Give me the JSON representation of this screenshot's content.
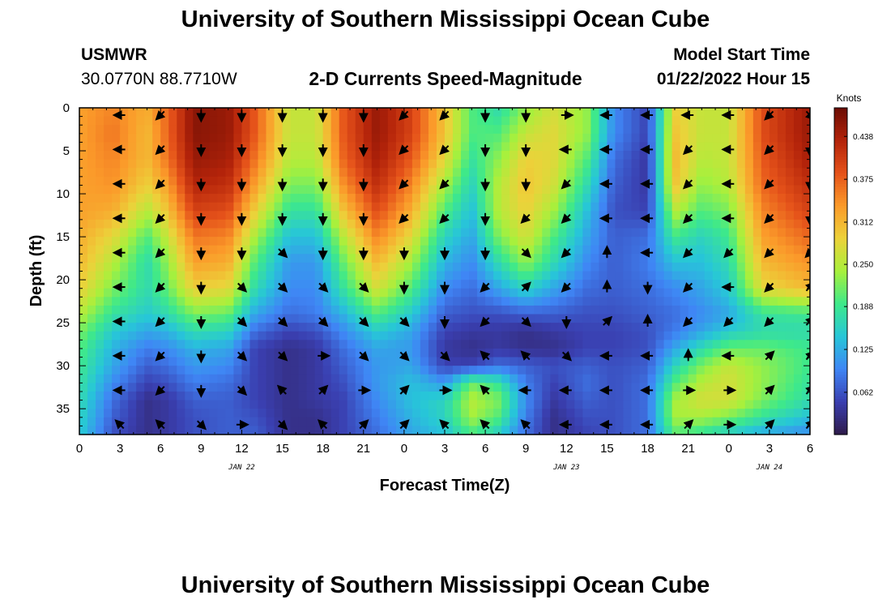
{
  "header": {
    "title": "University of Southern Mississippi Ocean Cube",
    "station": "USMWR",
    "coordinates": "30.0770N  88.7710W",
    "chart_title": "2-D Currents Speed-Magnitude",
    "model_label": "Model Start Time",
    "model_time": "01/22/2022 Hour 15"
  },
  "footer": {
    "title": "University of Southern Mississippi Ocean Cube"
  },
  "colors": {
    "palette": [
      "#2e1a4a",
      "#3a3fb0",
      "#3f86f5",
      "#27c6d8",
      "#3ee98a",
      "#a8f03c",
      "#ecd23a",
      "#fb9a2a",
      "#e5521a",
      "#b3230a",
      "#6b0d04"
    ]
  },
  "chart_data": {
    "type": "heatmap",
    "xlabel": "Forecast Time(Z)",
    "ylabel": "Depth (ft)",
    "x_ticks": [
      "0",
      "3",
      "6",
      "9",
      "12",
      "15",
      "18",
      "21",
      "0",
      "3",
      "6",
      "9",
      "12",
      "15",
      "18",
      "21",
      "0",
      "3",
      "6"
    ],
    "date_labels": [
      "JAN 22",
      "JAN 23",
      "JAN 24"
    ],
    "y_ticks": [
      "0",
      "5",
      "10",
      "15",
      "20",
      "25",
      "30",
      "35"
    ],
    "xlim_hours": [
      0,
      54
    ],
    "ylim_ft": [
      0,
      38
    ],
    "colorbar": {
      "label": "Knots",
      "ticks": [
        "0.438",
        "0.375",
        "0.312",
        "0.250",
        "0.188",
        "0.125",
        "0.062"
      ],
      "range": [
        0,
        0.48
      ]
    },
    "hours": [
      0,
      2.5,
      5,
      6.5,
      8.5,
      11,
      13,
      15.5,
      17.5,
      19.5,
      22,
      24.5,
      27,
      29,
      31,
      33,
      35,
      37.5,
      39.5,
      42,
      44,
      46,
      48,
      50.5,
      54
    ],
    "depths": [
      0,
      3,
      6,
      9,
      12,
      15,
      18,
      21,
      24,
      26,
      28,
      30,
      32,
      34,
      36,
      38
    ],
    "speed_knots": [
      [
        0.33,
        0.35,
        0.32,
        0.37,
        0.46,
        0.45,
        0.38,
        0.26,
        0.26,
        0.38,
        0.45,
        0.4,
        0.3,
        0.2,
        0.17,
        0.23,
        0.27,
        0.23,
        0.1,
        0.05,
        0.29,
        0.26,
        0.26,
        0.39,
        0.45
      ],
      [
        0.33,
        0.36,
        0.31,
        0.37,
        0.46,
        0.45,
        0.38,
        0.26,
        0.26,
        0.38,
        0.45,
        0.4,
        0.3,
        0.2,
        0.2,
        0.26,
        0.28,
        0.23,
        0.1,
        0.05,
        0.3,
        0.26,
        0.26,
        0.39,
        0.45
      ],
      [
        0.33,
        0.35,
        0.31,
        0.36,
        0.45,
        0.44,
        0.36,
        0.25,
        0.25,
        0.37,
        0.44,
        0.38,
        0.28,
        0.18,
        0.23,
        0.29,
        0.28,
        0.2,
        0.08,
        0.04,
        0.31,
        0.25,
        0.26,
        0.38,
        0.44
      ],
      [
        0.33,
        0.34,
        0.29,
        0.33,
        0.43,
        0.42,
        0.33,
        0.22,
        0.22,
        0.34,
        0.42,
        0.35,
        0.24,
        0.16,
        0.25,
        0.3,
        0.27,
        0.17,
        0.07,
        0.04,
        0.3,
        0.23,
        0.25,
        0.37,
        0.42
      ],
      [
        0.33,
        0.32,
        0.25,
        0.3,
        0.4,
        0.39,
        0.29,
        0.18,
        0.18,
        0.3,
        0.39,
        0.32,
        0.2,
        0.14,
        0.25,
        0.29,
        0.24,
        0.14,
        0.06,
        0.05,
        0.25,
        0.2,
        0.22,
        0.35,
        0.4
      ],
      [
        0.32,
        0.28,
        0.2,
        0.26,
        0.36,
        0.35,
        0.24,
        0.14,
        0.14,
        0.25,
        0.35,
        0.28,
        0.16,
        0.12,
        0.22,
        0.27,
        0.2,
        0.12,
        0.07,
        0.08,
        0.19,
        0.16,
        0.19,
        0.33,
        0.37
      ],
      [
        0.31,
        0.25,
        0.17,
        0.23,
        0.33,
        0.32,
        0.2,
        0.11,
        0.11,
        0.21,
        0.31,
        0.24,
        0.13,
        0.1,
        0.17,
        0.23,
        0.17,
        0.1,
        0.07,
        0.09,
        0.14,
        0.14,
        0.17,
        0.31,
        0.34
      ],
      [
        0.29,
        0.22,
        0.17,
        0.21,
        0.29,
        0.28,
        0.17,
        0.1,
        0.1,
        0.18,
        0.27,
        0.2,
        0.1,
        0.08,
        0.12,
        0.16,
        0.12,
        0.08,
        0.07,
        0.08,
        0.1,
        0.12,
        0.15,
        0.28,
        0.31
      ],
      [
        0.25,
        0.18,
        0.15,
        0.17,
        0.22,
        0.21,
        0.12,
        0.08,
        0.09,
        0.13,
        0.2,
        0.15,
        0.07,
        0.06,
        0.06,
        0.07,
        0.07,
        0.06,
        0.06,
        0.07,
        0.08,
        0.1,
        0.12,
        0.18,
        0.19
      ],
      [
        0.22,
        0.15,
        0.12,
        0.13,
        0.17,
        0.16,
        0.08,
        0.05,
        0.06,
        0.1,
        0.15,
        0.12,
        0.05,
        0.04,
        0.04,
        0.03,
        0.04,
        0.05,
        0.05,
        0.06,
        0.09,
        0.12,
        0.15,
        0.17,
        0.17
      ],
      [
        0.2,
        0.13,
        0.09,
        0.1,
        0.13,
        0.12,
        0.05,
        0.03,
        0.04,
        0.08,
        0.12,
        0.11,
        0.04,
        0.03,
        0.04,
        0.03,
        0.03,
        0.05,
        0.05,
        0.06,
        0.12,
        0.17,
        0.21,
        0.21,
        0.19
      ],
      [
        0.19,
        0.12,
        0.07,
        0.08,
        0.11,
        0.1,
        0.05,
        0.03,
        0.04,
        0.07,
        0.11,
        0.12,
        0.05,
        0.05,
        0.08,
        0.07,
        0.06,
        0.07,
        0.06,
        0.07,
        0.16,
        0.22,
        0.26,
        0.23,
        0.19
      ],
      [
        0.18,
        0.1,
        0.05,
        0.06,
        0.09,
        0.08,
        0.05,
        0.03,
        0.04,
        0.06,
        0.11,
        0.14,
        0.11,
        0.21,
        0.18,
        0.09,
        0.05,
        0.08,
        0.06,
        0.08,
        0.2,
        0.25,
        0.27,
        0.23,
        0.18
      ],
      [
        0.17,
        0.08,
        0.03,
        0.04,
        0.07,
        0.07,
        0.05,
        0.03,
        0.04,
        0.05,
        0.1,
        0.14,
        0.16,
        0.25,
        0.22,
        0.1,
        0.04,
        0.07,
        0.06,
        0.08,
        0.24,
        0.27,
        0.27,
        0.22,
        0.17
      ],
      [
        0.16,
        0.07,
        0.03,
        0.04,
        0.06,
        0.07,
        0.06,
        0.03,
        0.03,
        0.05,
        0.09,
        0.13,
        0.16,
        0.24,
        0.2,
        0.09,
        0.03,
        0.06,
        0.06,
        0.08,
        0.24,
        0.24,
        0.22,
        0.18,
        0.14
      ],
      [
        0.15,
        0.06,
        0.03,
        0.04,
        0.06,
        0.07,
        0.07,
        0.03,
        0.03,
        0.05,
        0.08,
        0.12,
        0.14,
        0.19,
        0.15,
        0.08,
        0.03,
        0.05,
        0.06,
        0.08,
        0.2,
        0.18,
        0.15,
        0.12,
        0.1
      ]
    ],
    "vector_hours": [
      3,
      6,
      9,
      12,
      15,
      18,
      21,
      24,
      27,
      30,
      33,
      36,
      39,
      42,
      45,
      48,
      51,
      54
    ],
    "vector_depths": [
      0,
      4,
      8,
      12,
      16,
      20,
      24,
      28,
      32,
      36
    ],
    "vector_dir_deg": [
      [
        270,
        225,
        180,
        180,
        180,
        180,
        180,
        225,
        225,
        180,
        180,
        90,
        270,
        270,
        270,
        270,
        225,
        135
      ],
      [
        270,
        225,
        180,
        180,
        180,
        180,
        180,
        225,
        225,
        180,
        180,
        270,
        270,
        270,
        225,
        270,
        225,
        180
      ],
      [
        270,
        225,
        180,
        180,
        180,
        180,
        180,
        225,
        225,
        180,
        180,
        225,
        270,
        270,
        225,
        270,
        225,
        180
      ],
      [
        270,
        225,
        180,
        180,
        180,
        180,
        180,
        225,
        225,
        180,
        225,
        225,
        270,
        270,
        225,
        270,
        225,
        180
      ],
      [
        270,
        225,
        180,
        180,
        135,
        180,
        180,
        180,
        180,
        180,
        135,
        225,
        0,
        270,
        225,
        225,
        225,
        225
      ],
      [
        270,
        225,
        180,
        135,
        135,
        135,
        135,
        180,
        180,
        225,
        45,
        225,
        0,
        180,
        225,
        270,
        225,
        45
      ],
      [
        270,
        225,
        180,
        135,
        135,
        135,
        135,
        135,
        180,
        225,
        135,
        180,
        45,
        0,
        225,
        225,
        225,
        45
      ],
      [
        270,
        225,
        180,
        135,
        135,
        90,
        135,
        135,
        135,
        315,
        315,
        135,
        270,
        270,
        0,
        270,
        45,
        45
      ],
      [
        270,
        225,
        180,
        135,
        315,
        45,
        90,
        45,
        90,
        315,
        270,
        270,
        270,
        270,
        90,
        90,
        45,
        45
      ],
      [
        315,
        315,
        135,
        90,
        135,
        315,
        45,
        45,
        315,
        315,
        315,
        270,
        270,
        270,
        45,
        90,
        45,
        45
      ]
    ]
  }
}
